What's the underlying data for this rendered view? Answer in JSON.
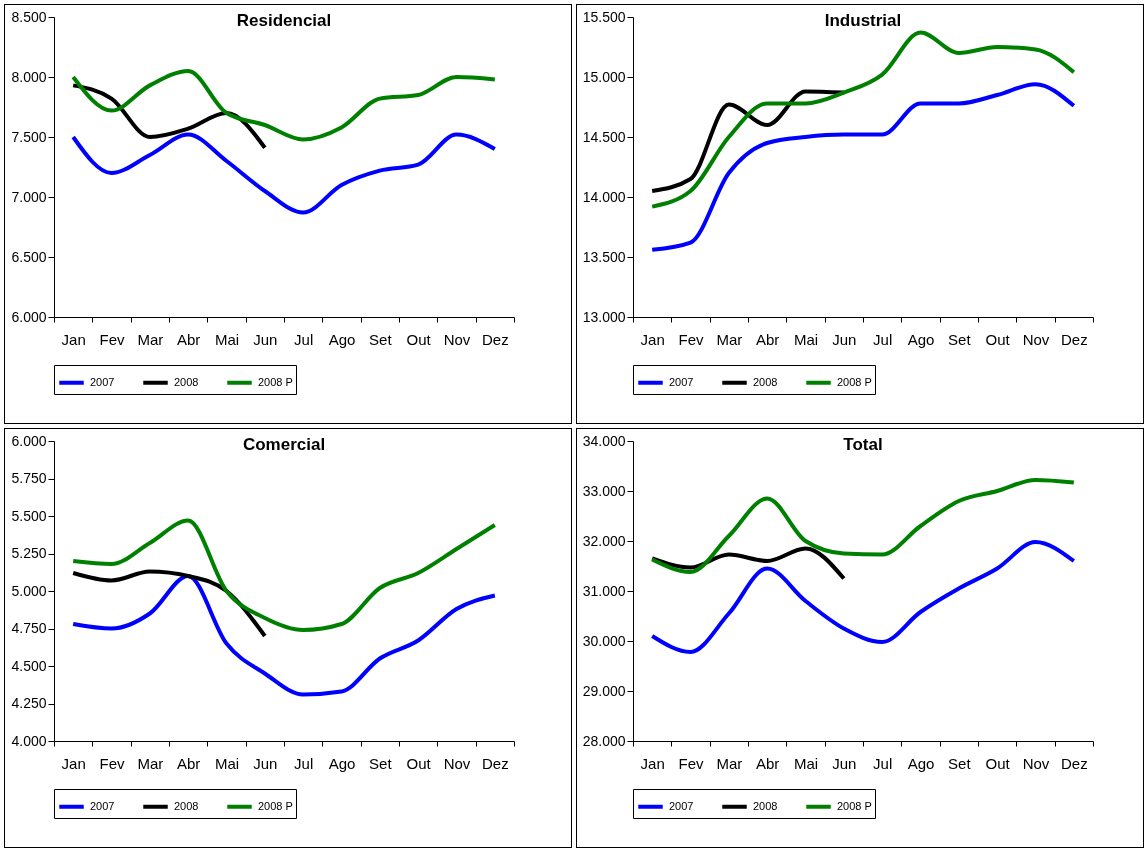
{
  "chart_data": [
    {
      "type": "line",
      "title": "Residencial",
      "categories": [
        "Jan",
        "Fev",
        "Mar",
        "Abr",
        "Mai",
        "Jun",
        "Jul",
        "Ago",
        "Set",
        "Out",
        "Nov",
        "Dez"
      ],
      "ylim": [
        6000,
        8500
      ],
      "yticks": [
        {
          "value": 6000,
          "label": "6.000"
        },
        {
          "value": 6500,
          "label": "6.500"
        },
        {
          "value": 7000,
          "label": "7.000"
        },
        {
          "value": 7500,
          "label": "7.500"
        },
        {
          "value": 8000,
          "label": "8.000"
        },
        {
          "value": 8500,
          "label": "8.500"
        }
      ],
      "legend": "bottom",
      "series": [
        {
          "name": "2007",
          "color": "#0000ff",
          "values": [
            7500,
            7200,
            7350,
            7520,
            7300,
            7050,
            6870,
            7100,
            7220,
            7270,
            7520,
            7400
          ]
        },
        {
          "name": "2008",
          "color": "#000000",
          "values": [
            7930,
            7820,
            7500,
            7570,
            7700,
            7410,
            null,
            null,
            null,
            null,
            null,
            null
          ]
        },
        {
          "name": "2008 P",
          "color": "#008000",
          "values": [
            8000,
            7720,
            7930,
            8050,
            7700,
            7600,
            7480,
            7580,
            7820,
            7850,
            8000,
            7980
          ]
        }
      ]
    },
    {
      "type": "line",
      "title": "Industrial",
      "categories": [
        "Jan",
        "Fev",
        "Mar",
        "Abr",
        "Mai",
        "Jun",
        "Jul",
        "Ago",
        "Set",
        "Out",
        "Nov",
        "Dez"
      ],
      "ylim": [
        13000,
        15500
      ],
      "yticks": [
        {
          "value": 13000,
          "label": "13.000"
        },
        {
          "value": 13500,
          "label": "13.500"
        },
        {
          "value": 14000,
          "label": "14.000"
        },
        {
          "value": 14500,
          "label": "14.500"
        },
        {
          "value": 15000,
          "label": "15.000"
        },
        {
          "value": 15500,
          "label": "15.500"
        }
      ],
      "legend": "bottom",
      "series": [
        {
          "name": "2007",
          "color": "#0000ff",
          "values": [
            13560,
            13620,
            14200,
            14450,
            14500,
            14520,
            14520,
            14780,
            14780,
            14850,
            14940,
            14760
          ]
        },
        {
          "name": "2008",
          "color": "#000000",
          "values": [
            14050,
            14150,
            14770,
            14600,
            14880,
            14870,
            null,
            null,
            null,
            null,
            null,
            null
          ]
        },
        {
          "name": "2008 P",
          "color": "#008000",
          "values": [
            13920,
            14050,
            14500,
            14780,
            14780,
            14870,
            15020,
            15370,
            15200,
            15250,
            15230,
            15040
          ]
        }
      ]
    },
    {
      "type": "line",
      "title": "Comercial",
      "categories": [
        "Jan",
        "Fev",
        "Mar",
        "Abr",
        "Mai",
        "Jun",
        "Jul",
        "Ago",
        "Set",
        "Out",
        "Nov",
        "Dez"
      ],
      "ylim": [
        4000,
        6000
      ],
      "yticks": [
        {
          "value": 4000,
          "label": "4.000"
        },
        {
          "value": 4250,
          "label": "4.250"
        },
        {
          "value": 4500,
          "label": "4.500"
        },
        {
          "value": 4750,
          "label": "4.750"
        },
        {
          "value": 5000,
          "label": "5.000"
        },
        {
          "value": 5250,
          "label": "5.250"
        },
        {
          "value": 5500,
          "label": "5.500"
        },
        {
          "value": 5750,
          "label": "5.750"
        },
        {
          "value": 6000,
          "label": "6.000"
        }
      ],
      "legend": "bottom",
      "series": [
        {
          "name": "2007",
          "color": "#0000ff",
          "values": [
            4780,
            4750,
            4850,
            5100,
            4650,
            4450,
            4310,
            4330,
            4550,
            4670,
            4880,
            4970
          ]
        },
        {
          "name": "2008",
          "color": "#000000",
          "values": [
            5120,
            5070,
            5130,
            5100,
            5000,
            4700,
            null,
            null,
            null,
            null,
            null,
            null
          ]
        },
        {
          "name": "2008 P",
          "color": "#008000",
          "values": [
            5200,
            5180,
            5320,
            5470,
            5000,
            4820,
            4740,
            4780,
            5020,
            5120,
            5280,
            5440
          ]
        }
      ]
    },
    {
      "type": "line",
      "title": "Total",
      "categories": [
        "Jan",
        "Fev",
        "Mar",
        "Abr",
        "Mai",
        "Jun",
        "Jul",
        "Ago",
        "Set",
        "Out",
        "Nov",
        "Dez"
      ],
      "ylim": [
        28000,
        34000
      ],
      "yticks": [
        {
          "value": 28000,
          "label": "28.000"
        },
        {
          "value": 29000,
          "label": "29.000"
        },
        {
          "value": 30000,
          "label": "30.000"
        },
        {
          "value": 31000,
          "label": "31.000"
        },
        {
          "value": 32000,
          "label": "32.000"
        },
        {
          "value": 33000,
          "label": "33.000"
        },
        {
          "value": 34000,
          "label": "34.000"
        }
      ],
      "legend": "bottom",
      "series": [
        {
          "name": "2007",
          "color": "#0000ff",
          "values": [
            30100,
            29780,
            30550,
            31450,
            30800,
            30250,
            29980,
            30580,
            31050,
            31450,
            31980,
            31600
          ]
        },
        {
          "name": "2008",
          "color": "#000000",
          "values": [
            31650,
            31470,
            31730,
            31600,
            31850,
            31250,
            null,
            null,
            null,
            null,
            null,
            null
          ]
        },
        {
          "name": "2008 P",
          "color": "#008000",
          "values": [
            31630,
            31380,
            32100,
            32850,
            32000,
            31750,
            31730,
            32300,
            32800,
            33000,
            33220,
            33170
          ]
        }
      ]
    }
  ]
}
